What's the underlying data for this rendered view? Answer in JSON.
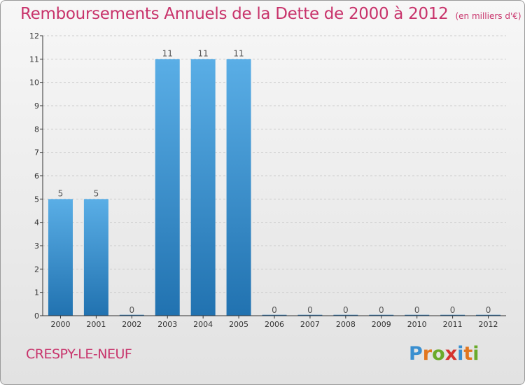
{
  "title": "Remboursements Annuels de la Dette de 2000 à 2012",
  "subtitle": "(en milliers d'€)",
  "commune": "CRESPY-LE-NEUF",
  "logo": {
    "text": "Proxiti",
    "letters": [
      {
        "char": "P",
        "color": "#3a8fd0"
      },
      {
        "char": "r",
        "color": "#e2761f"
      },
      {
        "char": "o",
        "color": "#6aaa2b"
      },
      {
        "char": "x",
        "color": "#d5322f"
      },
      {
        "char": "i",
        "color": "#3a8fd0"
      },
      {
        "char": "t",
        "color": "#e2761f"
      },
      {
        "char": "i",
        "color": "#6aaa2b"
      }
    ]
  },
  "colors": {
    "accent": "#c8336b",
    "bar_top": "#5aaee6",
    "bar_bottom": "#2172b0",
    "axis": "#333333",
    "grid": "#cccccc"
  },
  "chart_data": {
    "type": "bar",
    "title": "Remboursements Annuels de la Dette de 2000 à 2012",
    "subtitle": "(en milliers d'€)",
    "xlabel": "",
    "ylabel": "",
    "ylim": [
      0,
      12
    ],
    "yticks": [
      0,
      1,
      2,
      3,
      4,
      5,
      6,
      7,
      8,
      9,
      10,
      11,
      12
    ],
    "grid": true,
    "legend": "none",
    "categories": [
      "2000",
      "2001",
      "2002",
      "2003",
      "2004",
      "2005",
      "2006",
      "2007",
      "2008",
      "2009",
      "2010",
      "2011",
      "2012"
    ],
    "values": [
      5,
      5,
      0,
      11,
      11,
      11,
      0,
      0,
      0,
      0,
      0,
      0,
      0
    ],
    "data_labels": [
      "5",
      "5",
      "0",
      "11",
      "11",
      "11",
      "0",
      "0",
      "0",
      "0",
      "0",
      "0",
      "0"
    ]
  }
}
